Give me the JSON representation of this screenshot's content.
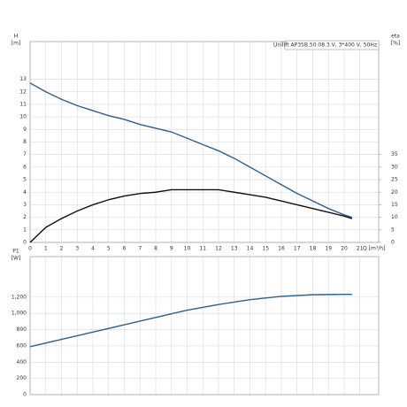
{
  "chart_data": [
    {
      "type": "line",
      "ylabel": "H",
      "yunit": "[m]",
      "y2label": "eta",
      "y2unit": "[%]",
      "xlabel": "Q [m³/h]",
      "note": "Unilift AP35B.50.08.3.V, 3*400 V, 50Hz",
      "x": [
        0,
        1,
        2,
        3,
        4,
        5,
        6,
        7,
        8,
        9,
        10,
        11,
        12,
        13,
        14,
        15,
        16,
        17,
        18,
        19,
        20,
        20.5
      ],
      "xlim": [
        0,
        22.2
      ],
      "xticks": [
        0,
        1,
        2,
        3,
        4,
        5,
        6,
        7,
        8,
        9,
        10,
        11,
        12,
        13,
        14,
        15,
        16,
        17,
        18,
        19,
        20,
        21
      ],
      "ylim": [
        0,
        16
      ],
      "yticks": [
        0,
        1,
        2,
        3,
        4,
        5,
        6,
        7,
        8,
        9,
        10,
        11,
        12,
        13
      ],
      "y2lim": [
        0,
        80
      ],
      "y2ticks": [
        0,
        5,
        10,
        15,
        20,
        25,
        30,
        35
      ],
      "grid": true,
      "series": [
        {
          "color": "#2e5f8e",
          "values": [
            12.7,
            12.0,
            11.4,
            10.9,
            10.5,
            10.1,
            9.8,
            9.4,
            9.1,
            8.8,
            8.3,
            7.8,
            7.3,
            6.7,
            6.0,
            5.3,
            4.6,
            3.9,
            3.3,
            2.7,
            2.2,
            2.0
          ]
        },
        {
          "color": "#111111",
          "axis": "y2",
          "values": [
            0,
            6,
            9.5,
            12.5,
            15,
            17,
            18.5,
            19.5,
            20,
            21,
            21,
            21,
            21,
            20,
            19,
            18,
            16.5,
            15,
            13.5,
            12,
            10.5,
            9.5
          ]
        }
      ]
    },
    {
      "type": "line",
      "ylabel": "P1",
      "yunit": "[W]",
      "x": [
        0,
        2,
        4,
        6,
        8,
        10,
        12,
        14,
        16,
        18,
        20,
        20.5
      ],
      "xlim": [
        0,
        22.2
      ],
      "xticks": [
        0,
        1,
        2,
        3,
        4,
        5,
        6,
        7,
        8,
        9,
        10,
        11,
        12,
        13,
        14,
        15,
        16,
        17,
        18,
        19,
        20,
        21
      ],
      "ylim": [
        0,
        1700
      ],
      "yticks": [
        0,
        200,
        400,
        600,
        800,
        {
          "value": 1000,
          "label": "1,000"
        },
        {
          "value": 1200,
          "label": "1,200"
        }
      ],
      "grid": true,
      "series": [
        {
          "color": "#2e5f8e",
          "values": [
            590,
            680,
            770,
            860,
            950,
            1040,
            1110,
            1170,
            1210,
            1230,
            1235,
            1235
          ]
        }
      ]
    }
  ]
}
